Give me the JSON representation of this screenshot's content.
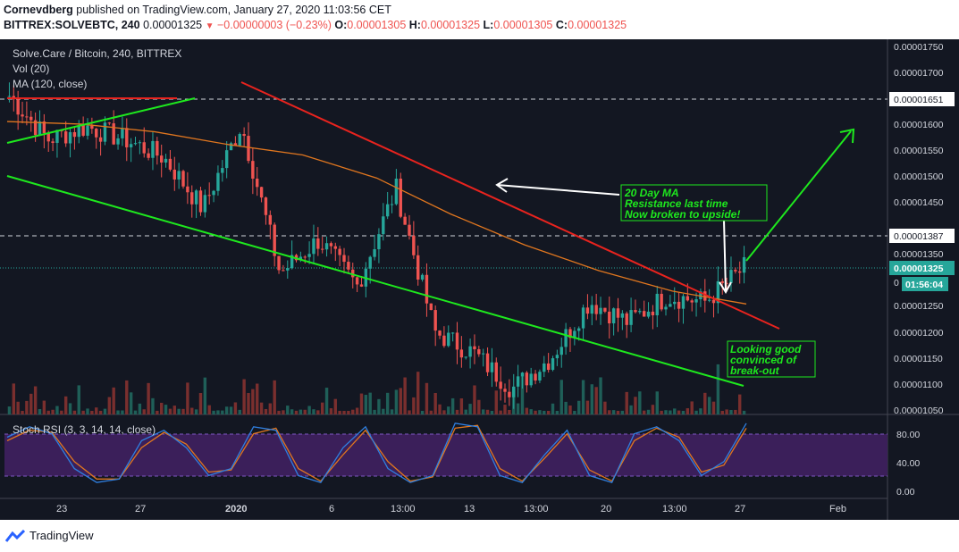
{
  "header": {
    "author": "Cornevdberg",
    "published_text": "published on TradingView.com, January 27, 2020 11:03:56 CET",
    "symbol": "BITTREX:SOLVEBTC, 240",
    "last": "0.00001325",
    "change": "−0.00000003 (−0.23%)",
    "o_label": "O:",
    "o": "0.00001305",
    "h_label": "H:",
    "h": "0.00001325",
    "l_label": "L:",
    "l": "0.00001305",
    "c_label": "C:",
    "c": "0.00001325"
  },
  "legend": {
    "title": "Solve.Care / Bitcoin, 240, BITTREX",
    "vol": "Vol (20)",
    "ma": "MA (120, close)",
    "stoch": "Stoch RSI (3, 3, 14, 14, close)"
  },
  "price_axis": [
    "0.00001750",
    "0.00001700",
    "0.00001651",
    "0.00001600",
    "0.00001550",
    "0.00001500",
    "0.00001450",
    "0.00001387",
    "0.00001350",
    "0.00001325",
    "0.00001250",
    "0.00001200",
    "0.00001150",
    "0.00001100",
    "0.00001050"
  ],
  "badges": {
    "level_high": "0.00001651",
    "level_mid": "0.00001387",
    "current": "0.00001325",
    "countdown": "01:56:04"
  },
  "stoch_axis": [
    "80.00",
    "40.00",
    "0.00"
  ],
  "time_axis": [
    "23",
    "27",
    "2020",
    "6",
    "13:00",
    "13",
    "13:00",
    "20",
    "13:00",
    "27",
    "Feb"
  ],
  "annotations": {
    "ma_note": [
      "20 Day MA",
      "Resistance last time",
      "Now broken to upside!"
    ],
    "breakout_note": [
      "Looking good",
      "convinced of",
      "break-out"
    ]
  },
  "footer": {
    "brand": "TradingView"
  },
  "colors": {
    "background": "#131722",
    "up": "#26a69a",
    "down": "#ef5350",
    "trend_green": "#1ee81e",
    "trend_red": "#e8231e",
    "ma": "#e0761f",
    "stoch_k": "#2f7fe0",
    "stoch_d": "#e0761f",
    "stoch_band": "#3b1f5a"
  },
  "chart_data": [
    {
      "type": "candlestick",
      "title": "Solve.Care / Bitcoin, 240, BITTREX",
      "ylim": [
        1.04e-05,
        1.77e-05
      ],
      "x_tick_labels": [
        "23",
        "27",
        "2020",
        "6",
        "13:00",
        "13",
        "13:00",
        "20",
        "13:00",
        "27",
        "Feb"
      ],
      "anchor_prices": [
        {
          "date": "Dec 21",
          "close": 1.66e-05
        },
        {
          "date": "Dec 23",
          "close": 1.575e-05
        },
        {
          "date": "Dec 27",
          "close": 1.6e-05
        },
        {
          "date": "Dec 29",
          "close": 1.575e-05
        },
        {
          "date": "Jan 1",
          "close": 1.54e-05
        },
        {
          "date": "Jan 3",
          "close": 1.44e-05
        },
        {
          "date": "Jan 6",
          "close": 1.605e-05
        },
        {
          "date": "Jan 9",
          "close": 1.315e-05
        },
        {
          "date": "Jan 11",
          "close": 1.38e-05
        },
        {
          "date": "Jan 12",
          "close": 1.29e-05
        },
        {
          "date": "Jan 14",
          "close": 1.48e-05
        },
        {
          "date": "Jan 15",
          "close": 1.2e-05
        },
        {
          "date": "Jan 17",
          "close": 1.16e-05
        },
        {
          "date": "Jan 19",
          "close": 1.09e-05
        },
        {
          "date": "Jan 21",
          "close": 1.15e-05
        },
        {
          "date": "Jan 22",
          "close": 1.26e-05
        },
        {
          "date": "Jan 24",
          "close": 1.22e-05
        },
        {
          "date": "Jan 25",
          "close": 1.27e-05
        },
        {
          "date": "Jan 26",
          "close": 1.26e-05
        },
        {
          "date": "Jan 27",
          "close": 1.325e-05
        }
      ],
      "ma_120": [
        1.61e-05,
        1.605e-05,
        1.59e-05,
        1.565e-05,
        1.545e-05,
        1.5e-05,
        1.43e-05,
        1.37e-05,
        1.32e-05,
        1.28e-05,
        1.255e-05
      ],
      "horizontal_levels": [
        1.651e-05,
        1.387e-05,
        1.325e-05
      ]
    },
    {
      "type": "line",
      "title": "Stoch RSI (3, 3, 14, 14, close)",
      "ylim": [
        0,
        100
      ],
      "bands": [
        20,
        80
      ],
      "series": [
        {
          "name": "K",
          "values": [
            75,
            90,
            80,
            30,
            10,
            15,
            70,
            85,
            60,
            20,
            30,
            90,
            85,
            20,
            10,
            60,
            90,
            30,
            10,
            20,
            95,
            90,
            20,
            10,
            50,
            85,
            20,
            10,
            80,
            90,
            70,
            20,
            40,
            95
          ]
        },
        {
          "name": "D",
          "values": [
            70,
            85,
            82,
            40,
            15,
            15,
            60,
            82,
            65,
            25,
            28,
            80,
            88,
            30,
            12,
            50,
            85,
            40,
            12,
            18,
            88,
            92,
            30,
            12,
            45,
            80,
            28,
            12,
            70,
            88,
            75,
            25,
            35,
            88
          ]
        }
      ]
    }
  ]
}
